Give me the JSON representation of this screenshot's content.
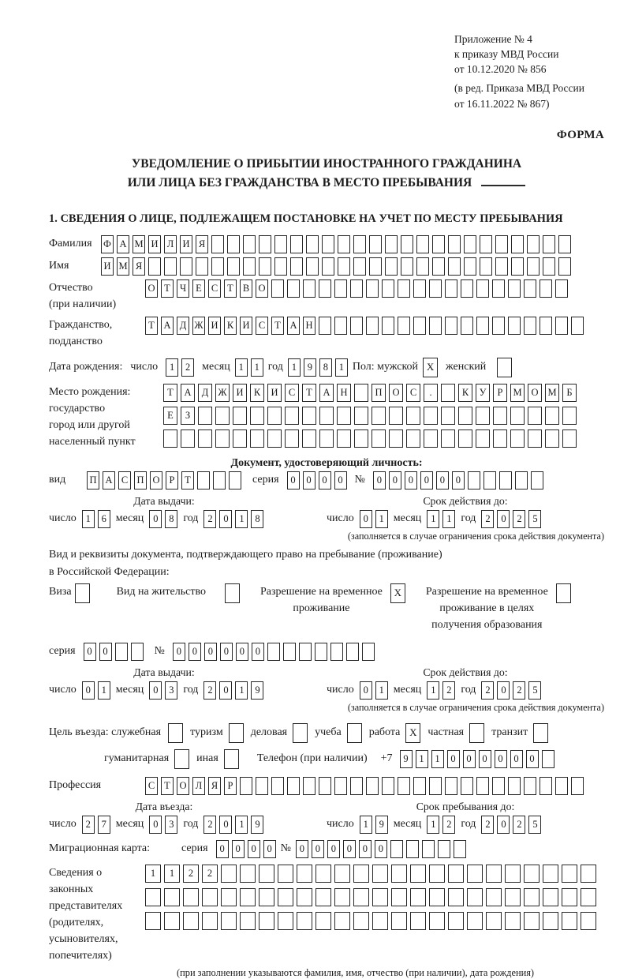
{
  "colors": {
    "ink": "#1c1c1c",
    "paper": "#ffffff"
  },
  "header": {
    "lines": [
      "Приложение № 4",
      "к приказу МВД России",
      "от 10.12.2020 № 856"
    ],
    "sub_lines": [
      "(в ред. Приказа МВД России",
      "от 16.11.2022 № 867)"
    ],
    "forma": "ФОРМА"
  },
  "title": {
    "line1": "УВЕДОМЛЕНИЕ О ПРИБЫТИИ ИНОСТРАННОГО ГРАЖДАНИНА",
    "line2": "ИЛИ ЛИЦА БЕЗ ГРАЖДАНСТВА В МЕСТО ПРЕБЫВАНИЯ"
  },
  "section_heading": "1. СВЕДЕНИЯ О ЛИЦЕ, ПОДЛЕЖАЩЕМ ПОСТАНОВКЕ НА УЧЕТ ПО МЕСТУ ПРЕБЫВАНИЯ",
  "date_labels": {
    "day": "число",
    "month": "месяц",
    "year": "год"
  },
  "surname": {
    "label": "Фамилия",
    "cells": {
      "value": "ФАМИЛИЯ",
      "len": 30
    }
  },
  "firstname": {
    "label": "Имя",
    "cells": {
      "value": "ИМЯ",
      "len": 30
    }
  },
  "patronymic": {
    "label": [
      "Отчество",
      "(при наличии)"
    ],
    "cells": {
      "value": "ОТЧЕСТВО",
      "len": 27
    }
  },
  "citizenship": {
    "label": [
      "Гражданство,",
      "подданство"
    ],
    "cells": {
      "value": "ТАДЖИКИСТАН",
      "len": 28
    }
  },
  "birth_date": {
    "label": "Дата рождения:",
    "day": {
      "value": "12"
    },
    "month": {
      "value": "11"
    },
    "year": {
      "value": "1981"
    },
    "sex_label": "Пол: мужской",
    "male_mark": "X",
    "female_label": "женский",
    "female_mark": ""
  },
  "birth_place": {
    "label": [
      "Место рождения:",
      "государство",
      "город или другой",
      "населенный пункт"
    ],
    "row1": {
      "value": "ТАДЖИКИСТАН ПОС. КУРМОМБ",
      "len": 24
    },
    "row2": {
      "value": "ЕЗ",
      "len": 24
    },
    "row3": {
      "value": "",
      "len": 24
    }
  },
  "identity_doc": {
    "heading": "Документ, удостоверяющий личность:",
    "kind_label": "вид",
    "kind": {
      "value": "ПАСПОРТ",
      "len": 10
    },
    "series_label": "серия",
    "series": {
      "value": "0000",
      "len": 4
    },
    "number_label": "№",
    "number": {
      "value": "000000",
      "len": 11
    },
    "issue_heading": "Дата выдачи:",
    "issue": {
      "day": {
        "value": "16"
      },
      "month": {
        "value": "08"
      },
      "year": {
        "value": "2018"
      }
    },
    "expiry_heading": "Срок действия до:",
    "expiry": {
      "day": {
        "value": "01"
      },
      "month": {
        "value": "11"
      },
      "year": {
        "value": "2025"
      }
    },
    "expiry_note": "(заполняется в случае ограничения срока действия документа)"
  },
  "residence_doc": {
    "intro_line1": "Вид и реквизиты документа, подтверждающего право на пребывание (проживание)",
    "intro_line2": "в Российской Федерации:",
    "options": [
      {
        "lines": [
          "Виза"
        ],
        "mark": ""
      },
      {
        "lines": [
          "Вид на жительство"
        ],
        "mark": ""
      },
      {
        "lines": [
          "Разрешение на временное",
          "проживание"
        ],
        "mark": "X"
      },
      {
        "lines": [
          "Разрешение на временное",
          "проживание в целях",
          "получения образования"
        ],
        "mark": ""
      }
    ],
    "series_label": "серия",
    "series": {
      "value": "00",
      "len": 4
    },
    "number_label": "№",
    "number": {
      "value": "000000",
      "len": 13
    },
    "issue_heading": "Дата выдачи:",
    "issue": {
      "day": {
        "value": "01"
      },
      "month": {
        "value": "03"
      },
      "year": {
        "value": "2019"
      }
    },
    "expiry_heading": "Срок действия до:",
    "expiry": {
      "day": {
        "value": "01"
      },
      "month": {
        "value": "12"
      },
      "year": {
        "value": "2025"
      }
    },
    "expiry_note": "(заполняется в случае ограничения срока действия документа)"
  },
  "visit_purpose": {
    "label": "Цель въезда: служебная",
    "row1": [
      {
        "label": "туризм",
        "mark": ""
      },
      {
        "label": "деловая",
        "mark": ""
      },
      {
        "label": "учеба",
        "mark": ""
      },
      {
        "label": "работа",
        "mark": "X"
      },
      {
        "label": "частная",
        "mark": ""
      },
      {
        "label": "транзит",
        "mark": ""
      }
    ],
    "first_mark": "",
    "row2": [
      {
        "label": "гуманитарная",
        "mark": ""
      },
      {
        "label": "иная",
        "mark": ""
      }
    ],
    "phone_label": "Телефон (при наличии)",
    "phone_prefix": "+7",
    "phone": {
      "value": "911000000",
      "len": 10
    }
  },
  "profession": {
    "label": "Профессия",
    "cells": {
      "value": "СТОЛЯР",
      "len": 28
    }
  },
  "entry": {
    "date_heading": "Дата въезда:",
    "date": {
      "day": {
        "value": "27"
      },
      "month": {
        "value": "03"
      },
      "year": {
        "value": "2019"
      }
    },
    "stay_heading": "Срок пребывания до:",
    "stay": {
      "day": {
        "value": "19"
      },
      "month": {
        "value": "12"
      },
      "year": {
        "value": "2025"
      }
    }
  },
  "migration_card": {
    "label": "Миграционная карта:",
    "series_label": "серия",
    "series": {
      "value": "0000",
      "len": 4
    },
    "number_label": "№",
    "number": {
      "value": "000000",
      "len": 11
    }
  },
  "legal_reps": {
    "label": [
      "Сведения о",
      "законных",
      "представителях",
      "(родителях,",
      "усыновителях,",
      "попечителях)"
    ],
    "row1": {
      "value": "1122",
      "len": 24
    },
    "row2": {
      "value": "",
      "len": 24
    },
    "row3": {
      "value": "",
      "len": 24
    },
    "note": "(при заполнении указываются фамилия, имя, отчество (при наличии), дата рождения)"
  }
}
